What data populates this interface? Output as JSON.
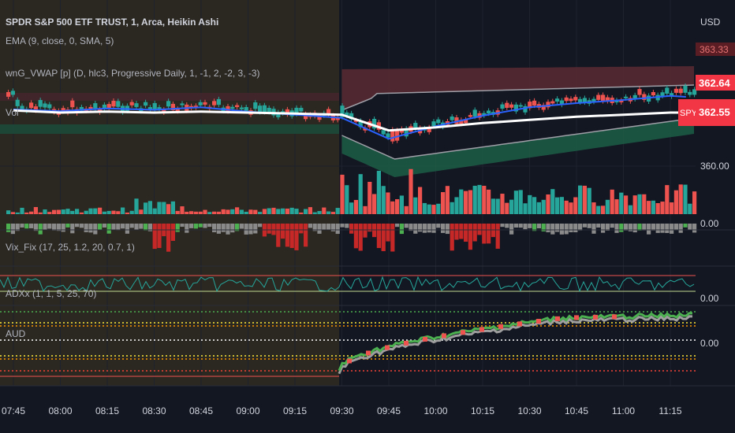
{
  "header": {
    "title": "SPDR S&P 500 ETF TRUST, 1, Arca, Heikin Ashi",
    "ema": "EMA (9, close, 0, SMA, 5)",
    "vwap": "wnG_VWAP [p] (D, hlc3, Progressive Daily, 1, -1, 2, -2, 3, -3)",
    "vol": "Vol",
    "currency": "USD"
  },
  "panes": {
    "vixfix": "Vix_Fix (17, 25, 1.2, 20, 0.7, 1)",
    "adx": "ADXx (1, 1, 5, 25, 70)",
    "aud": "AUD"
  },
  "price_badges": [
    {
      "text": "363.33",
      "kind": "faded",
      "color": "#f23645"
    },
    {
      "text": "362.64",
      "kind": "solid",
      "color": "#f23645"
    },
    {
      "text": "SPY",
      "kind": "tag",
      "color": "#f23645"
    },
    {
      "text": "362.55",
      "kind": "solid",
      "color": "#f23645"
    }
  ],
  "axis_labels": {
    "price": "360.00",
    "vixfix": "0.00",
    "adx": "0.00",
    "aud": "0.00"
  },
  "colors": {
    "up": "#26a69a",
    "down": "#ef5350",
    "ema": "#2962ff",
    "vwap": "#ffffff",
    "premarket": "#2a2620",
    "upper_band": "#5a2a33",
    "lower_band": "#1d5a45"
  },
  "chart_data": {
    "type": "line",
    "symbol": "SPY",
    "x_ticks": [
      "07:45",
      "08:00",
      "08:15",
      "08:30",
      "08:45",
      "09:00",
      "09:15",
      "09:30",
      "09:45",
      "10:00",
      "10:15",
      "10:30",
      "10:45",
      "11:00",
      "11:15"
    ],
    "y_ticks": [
      "360.00"
    ],
    "series": [
      {
        "name": "EMA (9, close, 0, SMA, 5)",
        "x": [
          "07:45",
          "08:00",
          "08:15",
          "08:30",
          "08:45",
          "09:00",
          "09:15",
          "09:30",
          "09:45",
          "10:00",
          "10:15",
          "10:30",
          "10:45",
          "11:00",
          "11:15",
          "11:20"
        ],
        "values": [
          362.7,
          362.62,
          362.75,
          362.68,
          362.8,
          362.6,
          362.45,
          362.3,
          361.3,
          361.9,
          362.4,
          362.8,
          363.0,
          363.15,
          363.35,
          363.3
        ]
      },
      {
        "values": [
          362.65,
          362.55,
          362.6,
          362.55,
          362.6,
          362.55,
          362.5,
          362.45,
          361.7,
          361.85,
          362.05,
          362.2,
          362.35,
          362.45,
          362.55,
          362.55
        ]
      }
    ],
    "last_price": 362.55
  }
}
